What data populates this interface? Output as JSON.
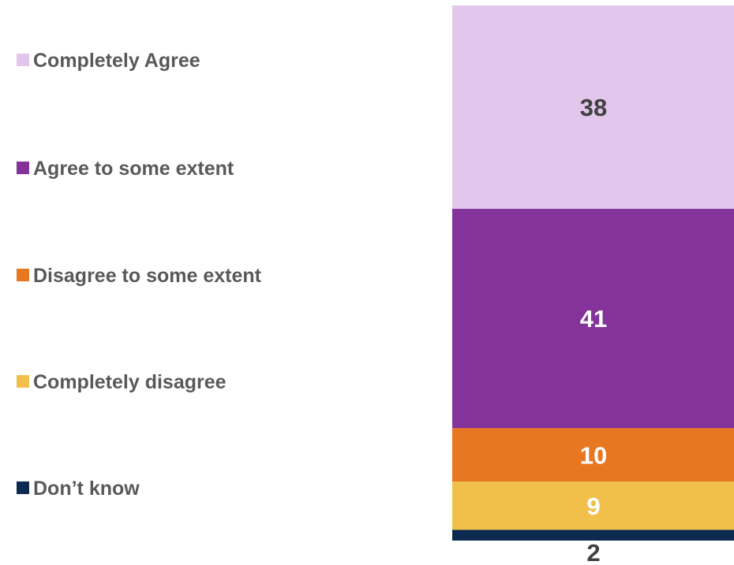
{
  "chart_data": {
    "type": "bar",
    "stacked": true,
    "orientation": "vertical",
    "categories": [
      ""
    ],
    "series": [
      {
        "name": "Completely Agree",
        "values": [
          38
        ],
        "color": "#E2C6EC",
        "label_color": "#404040"
      },
      {
        "name": "Agree to some extent",
        "values": [
          41
        ],
        "color": "#833399",
        "label_color": "#FFFFFF"
      },
      {
        "name": "Disagree to some extent",
        "values": [
          10
        ],
        "color": "#E87722",
        "label_color": "#FFFFFF"
      },
      {
        "name": "Completely disagree",
        "values": [
          9
        ],
        "color": "#F1C04B",
        "label_color": "#FFFFFF"
      },
      {
        "name": "Don’t know",
        "values": [
          2
        ],
        "color": "#0C2A50",
        "label_color": "#404040"
      }
    ],
    "data_labels": [
      "38",
      "41",
      "10",
      "9",
      "2"
    ],
    "legend_position": "left",
    "grid": false,
    "title": "",
    "xlabel": "",
    "ylabel": ""
  }
}
